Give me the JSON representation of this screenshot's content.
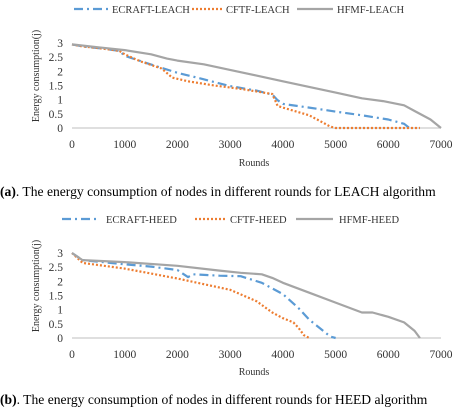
{
  "chart_data": [
    {
      "type": "line",
      "title": "",
      "caption_label": "(a)",
      "caption_text": ". The energy consumption of nodes in different rounds for LEACH algorithm",
      "xlabel": "Rounds",
      "ylabel": "Energy consumption(j)",
      "xlim": [
        0,
        7000
      ],
      "ylim": [
        0,
        3
      ],
      "xticks": [
        0,
        1000,
        2000,
        3000,
        4000,
        5000,
        6000,
        7000
      ],
      "yticks": [
        0,
        0.5,
        1,
        1.5,
        2,
        2.5,
        3
      ],
      "legend_position": "top",
      "grid": false,
      "series": [
        {
          "name": "ECRAFT-LEACH",
          "color": "#5b9bd5",
          "dash": "dashdot",
          "x": [
            0,
            200,
            600,
            900,
            1000,
            1400,
            1700,
            2000,
            2500,
            3000,
            3500,
            3800,
            3900,
            4000,
            4500,
            5000,
            5500,
            6000,
            6300,
            6400
          ],
          "y": [
            2.95,
            2.88,
            2.8,
            2.72,
            2.55,
            2.3,
            2.12,
            1.95,
            1.72,
            1.48,
            1.32,
            1.18,
            0.98,
            0.85,
            0.72,
            0.58,
            0.45,
            0.3,
            0.15,
            0.0
          ]
        },
        {
          "name": "CFTF-LEACH",
          "color": "#ed7d31",
          "dash": "dot",
          "x": [
            0,
            200,
            600,
            900,
            1000,
            1300,
            1700,
            1900,
            2200,
            2700,
            3200,
            3800,
            3900,
            4000,
            4500,
            4700,
            4900,
            5000,
            5300,
            5500,
            6000,
            6600
          ],
          "y": [
            2.95,
            2.88,
            2.8,
            2.72,
            2.6,
            2.35,
            2.1,
            1.78,
            1.65,
            1.5,
            1.38,
            1.2,
            0.78,
            0.72,
            0.45,
            0.25,
            0.05,
            0.0,
            0.0,
            0.0,
            0.0,
            0.0
          ]
        },
        {
          "name": "HFMF-LEACH",
          "color": "#a5a5a5",
          "dash": "solid",
          "x": [
            0,
            500,
            1000,
            1500,
            1800,
            2000,
            2500,
            3000,
            3500,
            4000,
            4500,
            5000,
            5500,
            5900,
            6300,
            6500,
            6800,
            7000
          ],
          "y": [
            2.95,
            2.85,
            2.75,
            2.6,
            2.45,
            2.38,
            2.25,
            2.05,
            1.85,
            1.65,
            1.45,
            1.25,
            1.05,
            0.95,
            0.8,
            0.6,
            0.3,
            0.0
          ]
        }
      ]
    },
    {
      "type": "line",
      "title": "",
      "caption_label": "(b)",
      "caption_text": ". The energy consumption of nodes in different rounds for HEED algorithm",
      "xlabel": "Rounds",
      "ylabel": "Energy consumption(j)",
      "xlim": [
        0,
        7000
      ],
      "ylim": [
        0,
        3
      ],
      "xticks": [
        0,
        1000,
        2000,
        3000,
        4000,
        5000,
        6000,
        7000
      ],
      "yticks": [
        0,
        0.5,
        1,
        1.5,
        2,
        2.5,
        3
      ],
      "legend_position": "top",
      "grid": false,
      "series": [
        {
          "name": "ECRAFT-HEED",
          "color": "#5b9bd5",
          "dash": "dashdot",
          "x": [
            0,
            200,
            1000,
            1500,
            2000,
            2200,
            2300,
            2800,
            3200,
            3600,
            4000,
            4300,
            4500,
            4700,
            4900,
            5000
          ],
          "y": [
            3.0,
            2.75,
            2.6,
            2.52,
            2.4,
            2.15,
            2.25,
            2.2,
            2.18,
            1.95,
            1.55,
            1.05,
            0.65,
            0.35,
            0.05,
            0.0
          ]
        },
        {
          "name": "CFTF-HEED",
          "color": "#ed7d31",
          "dash": "dot",
          "x": [
            0,
            200,
            1000,
            2000,
            3000,
            3500,
            3800,
            4000,
            4200,
            4300,
            4400,
            4500
          ],
          "y": [
            3.0,
            2.65,
            2.45,
            2.1,
            1.7,
            1.3,
            0.9,
            0.7,
            0.55,
            0.35,
            0.1,
            0.0
          ]
        },
        {
          "name": "HFMF-HEED",
          "color": "#a5a5a5",
          "dash": "solid",
          "x": [
            0,
            200,
            1000,
            2000,
            2800,
            3200,
            3600,
            3800,
            4000,
            4500,
            5000,
            5500,
            5700,
            6000,
            6300,
            6500,
            6600
          ],
          "y": [
            3.0,
            2.75,
            2.68,
            2.55,
            2.38,
            2.3,
            2.25,
            2.12,
            1.95,
            1.6,
            1.25,
            0.9,
            0.9,
            0.75,
            0.55,
            0.25,
            0.0
          ]
        }
      ]
    }
  ]
}
